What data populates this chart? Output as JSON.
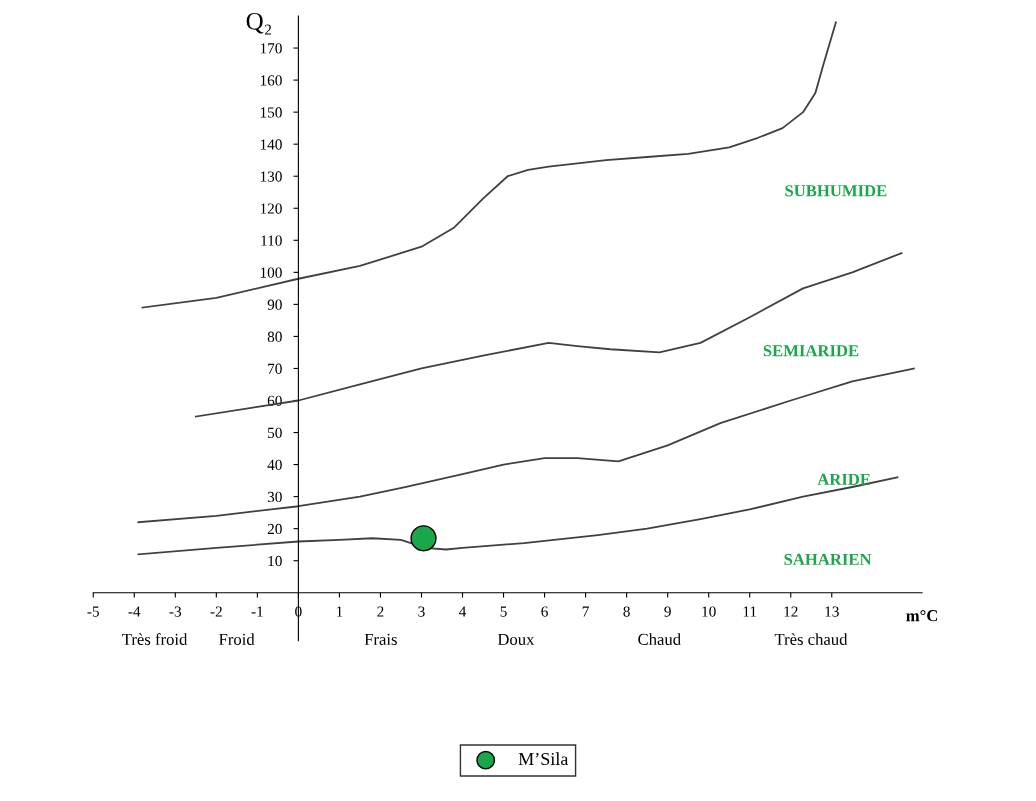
{
  "chart_data": {
    "type": "line",
    "ylabel": "Q₂",
    "xlabel": "m°C",
    "xlim": [
      -5,
      15.2
    ],
    "ylim": [
      -15,
      180
    ],
    "xticks": [
      -5,
      -4,
      -3,
      -2,
      -1,
      0,
      1,
      2,
      3,
      4,
      5,
      6,
      7,
      8,
      9,
      10,
      11,
      12,
      13
    ],
    "yticks": [
      10,
      20,
      30,
      40,
      50,
      60,
      70,
      80,
      90,
      100,
      110,
      120,
      130,
      140,
      150,
      160,
      170
    ],
    "grid": false,
    "legend": "bottom",
    "marker": "none",
    "line_style": "solid",
    "series": [
      {
        "color": "#404040",
        "x": [
          -3.8,
          -2,
          0,
          1.5,
          3,
          3.8,
          4.5,
          5.1,
          5.6,
          6.1,
          7.5,
          8.5,
          9.5,
          10.5,
          11.2,
          11.8,
          12.3,
          12.6,
          12.8,
          13.1
        ],
        "values": [
          89,
          92,
          98,
          102,
          108,
          114,
          123,
          130,
          132,
          133,
          135,
          136,
          137,
          139,
          142,
          145,
          150,
          156,
          165,
          178
        ]
      },
      {
        "color": "#404040",
        "x": [
          -2.5,
          -1,
          0,
          1.5,
          3,
          4.5,
          6.1,
          6.8,
          7.6,
          8.8,
          9.8,
          11,
          12.3,
          13.5,
          14.7
        ],
        "values": [
          55,
          58,
          60,
          65,
          70,
          74,
          78,
          77,
          76,
          75,
          78,
          86,
          95,
          100,
          106
        ]
      },
      {
        "color": "#404040",
        "x": [
          -3.9,
          -2,
          0,
          1.5,
          2.6,
          4,
          5,
          6,
          6.8,
          7.8,
          9,
          10.3,
          12,
          13.5,
          15
        ],
        "values": [
          22,
          24,
          27,
          30,
          33,
          37,
          40,
          42,
          42,
          41,
          46,
          53,
          60,
          66,
          70
        ]
      },
      {
        "color": "#404040",
        "x": [
          -3.9,
          -2,
          0,
          1,
          1.8,
          2.5,
          3.1,
          3.6,
          4,
          5.5,
          7.3,
          8.5,
          9.8,
          11,
          12.3,
          13.5,
          14.6
        ],
        "values": [
          12,
          14,
          16,
          16.5,
          17,
          16.5,
          14,
          13.5,
          14,
          15.5,
          18,
          20,
          23,
          26,
          30,
          33,
          36
        ]
      },
      {
        "type": "scatter",
        "name": "M’Sila",
        "color": "#1aa64a",
        "marker": "circle",
        "x": [
          3.05
        ],
        "values": [
          17
        ]
      }
    ],
    "annotations": [
      "SUBHUMIDE",
      "SEMIARIDE",
      "ARIDE",
      "SAHARIEN",
      "Très froid",
      "Froid",
      "Frais",
      "Doux",
      "Chaud",
      "Très chaud"
    ]
  }
}
